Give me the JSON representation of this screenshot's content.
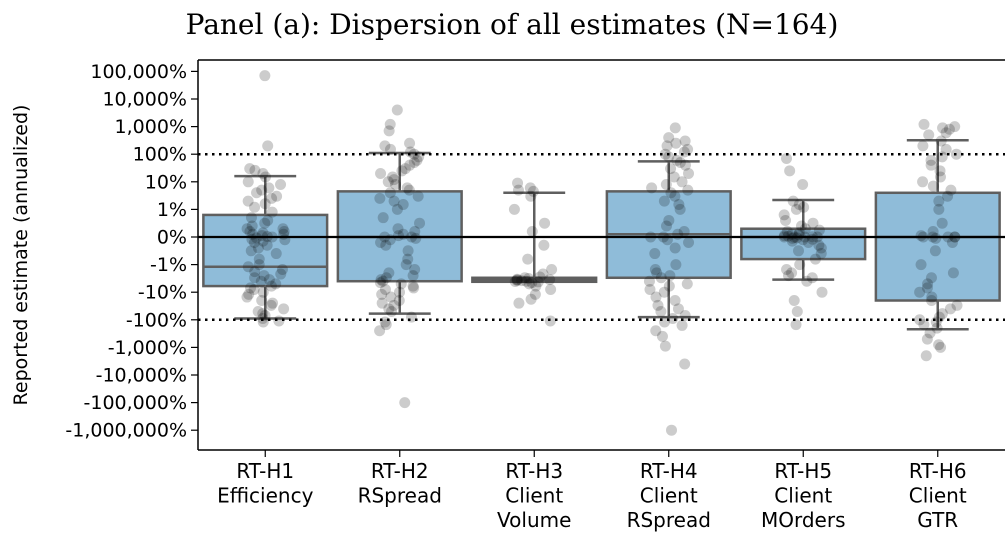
{
  "chart_data": {
    "type": "box-strip",
    "title": "Panel (a): Dispersion of all estimates (N=164)",
    "ylabel": "Reported estimate (annualized)",
    "yscale": "symlog",
    "y_ticks": [
      {
        "value": 1000000,
        "label": "100,000%"
      },
      {
        "value": 100000,
        "label": "10,000%"
      },
      {
        "value": 10000,
        "label": "1,000%"
      },
      {
        "value": 1000,
        "label": "100%"
      },
      {
        "value": 100,
        "label": "10%"
      },
      {
        "value": 10,
        "label": "1%"
      },
      {
        "value": 0,
        "label": "0%"
      },
      {
        "value": -10,
        "label": "-1%"
      },
      {
        "value": -100,
        "label": "-10%"
      },
      {
        "value": -1000,
        "label": "-100%"
      },
      {
        "value": -10000,
        "label": "-1,000%"
      },
      {
        "value": -100000,
        "label": "-10,000%"
      },
      {
        "value": -1000000,
        "label": "-100,000%"
      },
      {
        "value": -10000000,
        "label": "-1,000,000%"
      }
    ],
    "reference_lines": [
      {
        "value": 1000,
        "style": "dotted"
      },
      {
        "value": -1000,
        "style": "dotted"
      },
      {
        "value": 0,
        "style": "solid"
      }
    ],
    "box_color": "#8fbcd9",
    "box_edge_color": "#5f5f5f",
    "point_color": "#000000",
    "categories": [
      {
        "lines": [
          "RT-H1",
          "Efficiency"
        ],
        "box": {
          "q1": -60,
          "median": -12,
          "q3": 8,
          "whisker_low": -900,
          "whisker_high": 160
        },
        "points": [
          700000,
          2000,
          300,
          260,
          200,
          150,
          100,
          80,
          60,
          50,
          40,
          30,
          25,
          20,
          16,
          12,
          9,
          7,
          6,
          5,
          4,
          3,
          3,
          2,
          2,
          1.5,
          1,
          1,
          0.5,
          0.2,
          0,
          -0.3,
          -0.8,
          -1,
          -1.5,
          -2,
          -3,
          -4,
          -5,
          -6,
          -8,
          -10,
          -12,
          -15,
          -18,
          -22,
          -25,
          -30,
          -35,
          -40,
          -50,
          -60,
          -70,
          -80,
          -100,
          -120,
          -150,
          -200,
          -250,
          -300,
          -400,
          -500,
          -600,
          -700,
          -900,
          -1100,
          -1200
        ]
      },
      {
        "lines": [
          "RT-H2",
          "RSpread"
        ],
        "box": {
          "q1": -40,
          "median": 0,
          "q3": 45,
          "whisker_low": -600,
          "whisker_high": 1100
        },
        "points": [
          40000,
          12000,
          7000,
          2500,
          2000,
          1500,
          1200,
          1000,
          800,
          600,
          500,
          400,
          300,
          250,
          200,
          150,
          120,
          100,
          80,
          60,
          50,
          40,
          30,
          25,
          20,
          15,
          10,
          7,
          5,
          3,
          2,
          1,
          0.5,
          0,
          0,
          -0.5,
          -1,
          -2,
          -3,
          -5,
          -8,
          -10,
          -15,
          -20,
          -25,
          -30,
          -35,
          -40,
          -45,
          -50,
          -60,
          -70,
          -80,
          -100,
          -120,
          -150,
          -200,
          -250,
          -300,
          -400,
          -500,
          -800,
          -1200,
          -1500,
          -2500,
          -1000000
        ]
      },
      {
        "lines": [
          "RT-H3",
          "Client",
          "Volume"
        ],
        "box": {
          "q1": -42,
          "median": -35,
          "q3": -30,
          "whisker_low": -42,
          "whisker_high": 40
        },
        "points": [
          90,
          60,
          50,
          45,
          30,
          10,
          5,
          2,
          -3,
          -8,
          -15,
          -22,
          -28,
          -30,
          -32,
          -34,
          -35,
          -36,
          -37,
          -38,
          -40,
          -41,
          -42,
          -45,
          -50,
          -60,
          -80,
          -120,
          -180,
          -250,
          -1100
        ]
      },
      {
        "lines": [
          "RT-H4",
          "Client",
          "RSpread"
        ],
        "box": {
          "q1": -30,
          "median": 1,
          "q3": 45,
          "whisker_low": -800,
          "whisker_high": 550
        },
        "points": [
          9000,
          4000,
          3000,
          2500,
          2000,
          1500,
          1200,
          1000,
          800,
          600,
          500,
          400,
          300,
          200,
          150,
          100,
          80,
          60,
          50,
          40,
          30,
          20,
          15,
          10,
          6,
          4,
          2,
          1,
          0,
          0,
          -1,
          -2,
          -4,
          -6,
          -10,
          -15,
          -20,
          -25,
          -30,
          -40,
          -50,
          -60,
          -80,
          -100,
          -150,
          -200,
          -300,
          -400,
          -500,
          -700,
          -900,
          -1200,
          -1600,
          -2500,
          -4000,
          -9000,
          -40000,
          -10000000
        ]
      },
      {
        "lines": [
          "RT-H5",
          "Client",
          "MOrders"
        ],
        "box": {
          "q1": -8,
          "median": 0,
          "q3": 3,
          "whisker_low": -35,
          "whisker_high": 22
        },
        "points": [
          700,
          250,
          80,
          20,
          15,
          12,
          10,
          8,
          6,
          5,
          4,
          3,
          2.5,
          2,
          1.5,
          1,
          0.8,
          0.5,
          0.3,
          0.1,
          0,
          0,
          0,
          -0.1,
          -0.3,
          -0.5,
          -0.8,
          -1,
          -1.5,
          -2,
          -3,
          -4,
          -5,
          -6,
          -8,
          -10,
          -15,
          -20,
          -25,
          -30,
          -40,
          -100,
          -200,
          -500,
          -1500
        ]
      },
      {
        "lines": [
          "RT-H6",
          "Client",
          "GTR"
        ],
        "box": {
          "q1": -200,
          "median": 0,
          "q3": 40,
          "whisker_low": -2200,
          "whisker_high": 3200
        },
        "points": [
          12000,
          10000,
          9000,
          8000,
          6000,
          5000,
          3000,
          2000,
          1500,
          1000,
          800,
          600,
          400,
          250,
          150,
          100,
          70,
          50,
          30,
          20,
          10,
          5,
          2,
          0.5,
          0,
          0,
          0,
          0,
          0,
          -0.5,
          -2,
          -5,
          -10,
          -20,
          -30,
          -50,
          -70,
          -100,
          -150,
          -200,
          -300,
          -400,
          -600,
          -800,
          -1000,
          -1200,
          -1500,
          -2000,
          -3000,
          -5000,
          -8000,
          -10000,
          -20000
        ]
      }
    ]
  }
}
